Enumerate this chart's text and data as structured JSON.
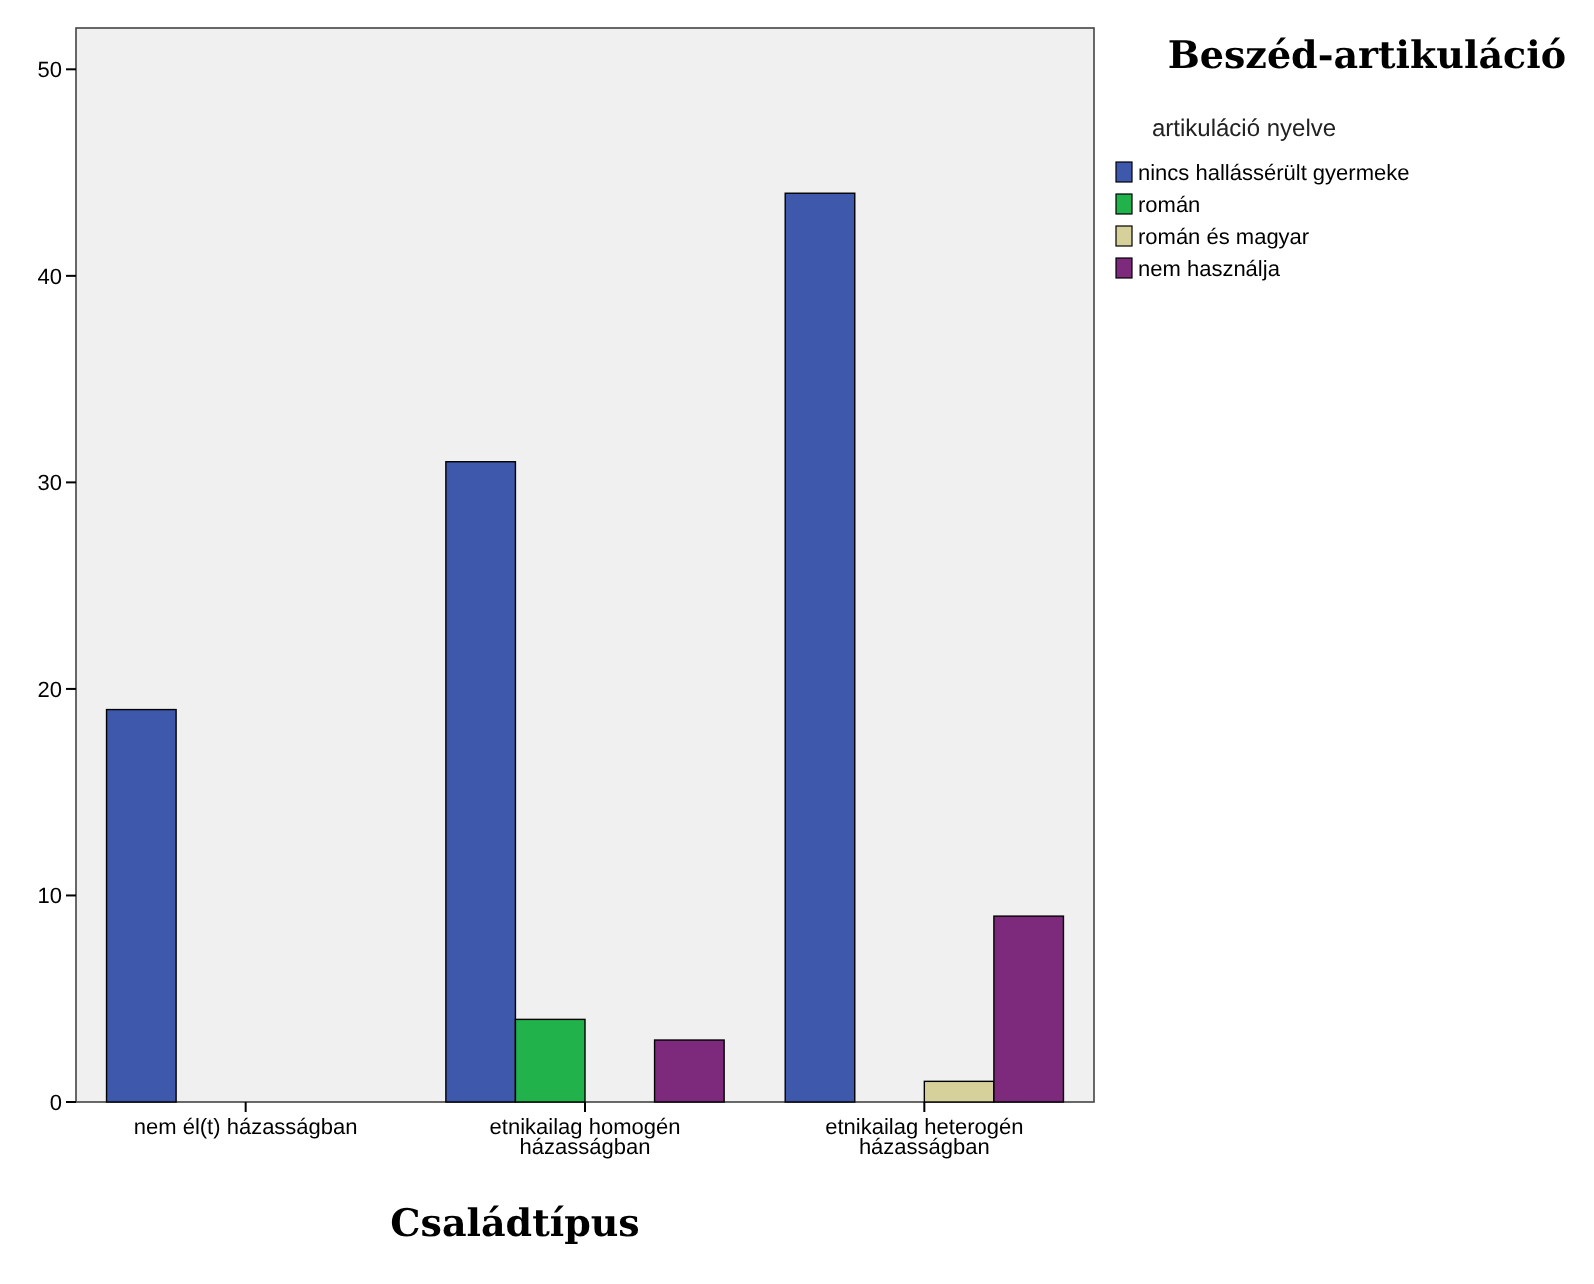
{
  "chart_data": {
    "type": "bar",
    "title": "Beszéd-artikuláció",
    "xlabel": "Családtípus",
    "legend_title": "artikuláció nyelve",
    "categories": [
      "nem él(t) házasságban",
      "etnikailag homogén házasságban",
      "etnikailag heterogén házasságban"
    ],
    "series": [
      {
        "name": "nincs hallássérült gyermeke",
        "color": "#3e58ac",
        "values": [
          19,
          31,
          44
        ]
      },
      {
        "name": "román",
        "color": "#21b24b",
        "values": [
          null,
          4,
          null
        ]
      },
      {
        "name": "román és magyar",
        "color": "#d6d09a",
        "values": [
          null,
          null,
          1
        ]
      },
      {
        "name": "nem használja",
        "color": "#7e2a7c",
        "values": [
          null,
          3,
          9
        ]
      }
    ],
    "ylim": [
      0,
      52
    ],
    "yticks": [
      0,
      10,
      20,
      30,
      40,
      50
    ],
    "grid": false,
    "legend": "right"
  }
}
